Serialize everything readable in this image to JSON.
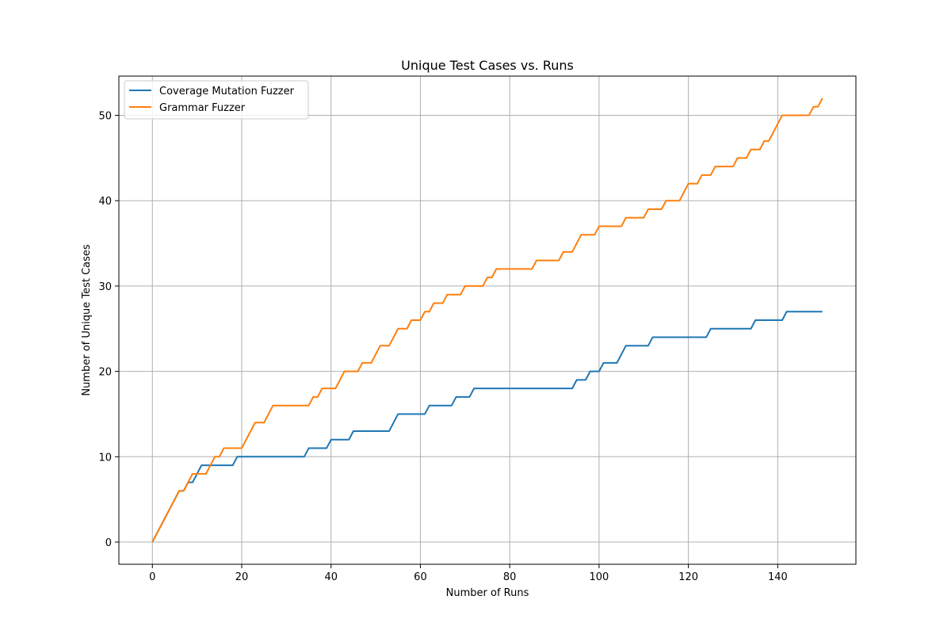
{
  "chart_data": {
    "type": "line",
    "title": "Unique Test Cases vs. Runs",
    "xlabel": "Number of Runs",
    "ylabel": "Number of Unique Test Cases",
    "xlim": [
      -7.5,
      157.5
    ],
    "ylim": [
      -2.6,
      54.6
    ],
    "xticks": [
      0,
      20,
      40,
      60,
      80,
      100,
      120,
      140
    ],
    "yticks": [
      0,
      10,
      20,
      30,
      40,
      50
    ],
    "grid": true,
    "legend_position": "upper-left",
    "series": [
      {
        "name": "Coverage Mutation Fuzzer",
        "color": "#1f77b4",
        "points": [
          [
            0,
            0
          ],
          [
            6,
            6
          ],
          [
            7,
            6
          ],
          [
            8,
            7
          ],
          [
            9,
            7
          ],
          [
            10,
            8
          ],
          [
            11,
            9
          ],
          [
            12,
            9
          ],
          [
            18,
            9
          ],
          [
            19,
            10
          ],
          [
            34,
            10
          ],
          [
            35,
            11
          ],
          [
            39,
            11
          ],
          [
            40,
            12
          ],
          [
            44,
            12
          ],
          [
            45,
            13
          ],
          [
            53,
            13
          ],
          [
            55,
            15
          ],
          [
            61,
            15
          ],
          [
            62,
            16
          ],
          [
            67,
            16
          ],
          [
            68,
            17
          ],
          [
            71,
            17
          ],
          [
            72,
            18
          ],
          [
            94,
            18
          ],
          [
            95,
            19
          ],
          [
            97,
            19
          ],
          [
            98,
            20
          ],
          [
            100,
            20
          ],
          [
            101,
            21
          ],
          [
            104,
            21
          ],
          [
            106,
            23
          ],
          [
            111,
            23
          ],
          [
            112,
            24
          ],
          [
            124,
            24
          ],
          [
            125,
            25
          ],
          [
            134,
            25
          ],
          [
            135,
            26
          ],
          [
            141,
            26
          ],
          [
            142,
            27
          ],
          [
            150,
            27
          ]
        ]
      },
      {
        "name": "Grammar Fuzzer",
        "color": "#ff7f0e",
        "points": [
          [
            0,
            0
          ],
          [
            6,
            6
          ],
          [
            7,
            6
          ],
          [
            9,
            8
          ],
          [
            10,
            8
          ],
          [
            11,
            8
          ],
          [
            12,
            8
          ],
          [
            14,
            10
          ],
          [
            15,
            10
          ],
          [
            16,
            11
          ],
          [
            19,
            11
          ],
          [
            20,
            11
          ],
          [
            23,
            14
          ],
          [
            24,
            14
          ],
          [
            25,
            14
          ],
          [
            27,
            16
          ],
          [
            28,
            16
          ],
          [
            35,
            16
          ],
          [
            36,
            17
          ],
          [
            37,
            17
          ],
          [
            38,
            18
          ],
          [
            40,
            18
          ],
          [
            41,
            18
          ],
          [
            43,
            20
          ],
          [
            46,
            20
          ],
          [
            47,
            21
          ],
          [
            49,
            21
          ],
          [
            51,
            23
          ],
          [
            53,
            23
          ],
          [
            55,
            25
          ],
          [
            57,
            25
          ],
          [
            58,
            26
          ],
          [
            60,
            26
          ],
          [
            61,
            27
          ],
          [
            62,
            27
          ],
          [
            63,
            28
          ],
          [
            65,
            28
          ],
          [
            66,
            29
          ],
          [
            69,
            29
          ],
          [
            70,
            30
          ],
          [
            74,
            30
          ],
          [
            75,
            31
          ],
          [
            76,
            31
          ],
          [
            77,
            32
          ],
          [
            85,
            32
          ],
          [
            86,
            33
          ],
          [
            91,
            33
          ],
          [
            92,
            34
          ],
          [
            94,
            34
          ],
          [
            96,
            36
          ],
          [
            99,
            36
          ],
          [
            100,
            37
          ],
          [
            105,
            37
          ],
          [
            106,
            38
          ],
          [
            110,
            38
          ],
          [
            111,
            39
          ],
          [
            114,
            39
          ],
          [
            115,
            40
          ],
          [
            118,
            40
          ],
          [
            120,
            42
          ],
          [
            122,
            42
          ],
          [
            123,
            43
          ],
          [
            125,
            43
          ],
          [
            126,
            44
          ],
          [
            130,
            44
          ],
          [
            131,
            45
          ],
          [
            133,
            45
          ],
          [
            134,
            46
          ],
          [
            136,
            46
          ],
          [
            137,
            47
          ],
          [
            138,
            47
          ],
          [
            140,
            49
          ],
          [
            141,
            50
          ],
          [
            147,
            50
          ],
          [
            148,
            51
          ],
          [
            149,
            51
          ],
          [
            150,
            52
          ]
        ]
      }
    ]
  }
}
